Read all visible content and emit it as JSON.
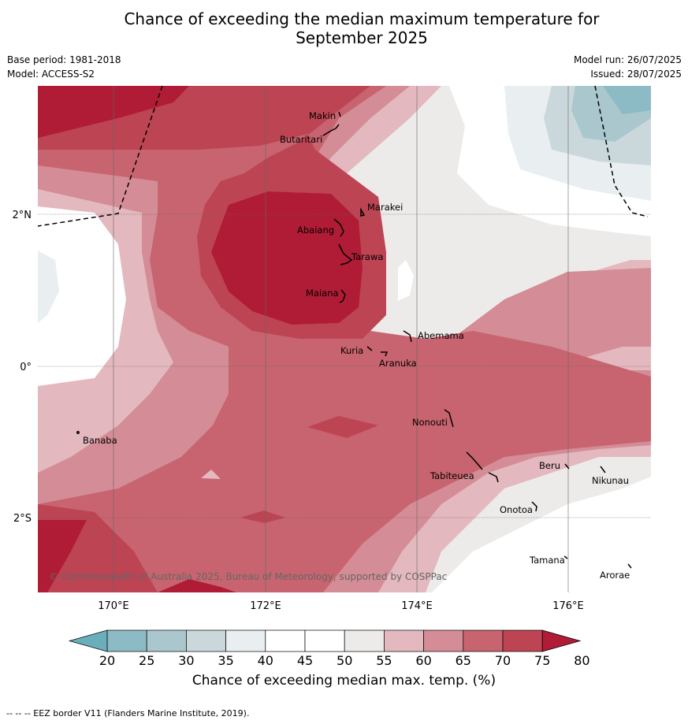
{
  "title_line1": "Chance of exceeding the median maximum temperature for",
  "title_line2": "September 2025",
  "meta_left": {
    "base_period": "Base period: 1981-2018",
    "model": "Model: ACCESS-S2"
  },
  "meta_right": {
    "model_run": "Model run: 26/07/2025",
    "issued": "Issued: 28/07/2025"
  },
  "lat_ticks": [
    "2°N",
    "0°",
    "2°S"
  ],
  "lon_ticks": [
    "170°E",
    "172°E",
    "174°E",
    "176°E"
  ],
  "places": [
    "Makin",
    "Butaritari",
    "Marakei",
    "Abaiang",
    "Tarawa",
    "Maiana",
    "Abemama",
    "Kuria",
    "Aranuka",
    "Nonouti",
    "Banaba",
    "Beru",
    "Tabiteuea",
    "Nikunau",
    "Onotoa",
    "Tamana",
    "Arorae"
  ],
  "copyright": "© Commonwealth of Australia 2025, Bureau of Meteorology, supported by COSPPac",
  "colorbar": {
    "ticks": [
      "20",
      "25",
      "30",
      "35",
      "40",
      "45",
      "50",
      "55",
      "60",
      "65",
      "70",
      "75",
      "80"
    ],
    "colors": [
      "#6aaebc",
      "#8cbac5",
      "#a9c7cc",
      "#cad8dc",
      "#e9eff1",
      "#ffffff",
      "#ffffff",
      "#edebea",
      "#e3b8be",
      "#d48c96",
      "#c7646f",
      "#bd4453",
      "#b01c35"
    ],
    "label": "Chance of exceeding median max. temp. (%)"
  },
  "footer": "-- -- -- EEZ border V11 (Flanders Marine Institute, 2019)."
}
